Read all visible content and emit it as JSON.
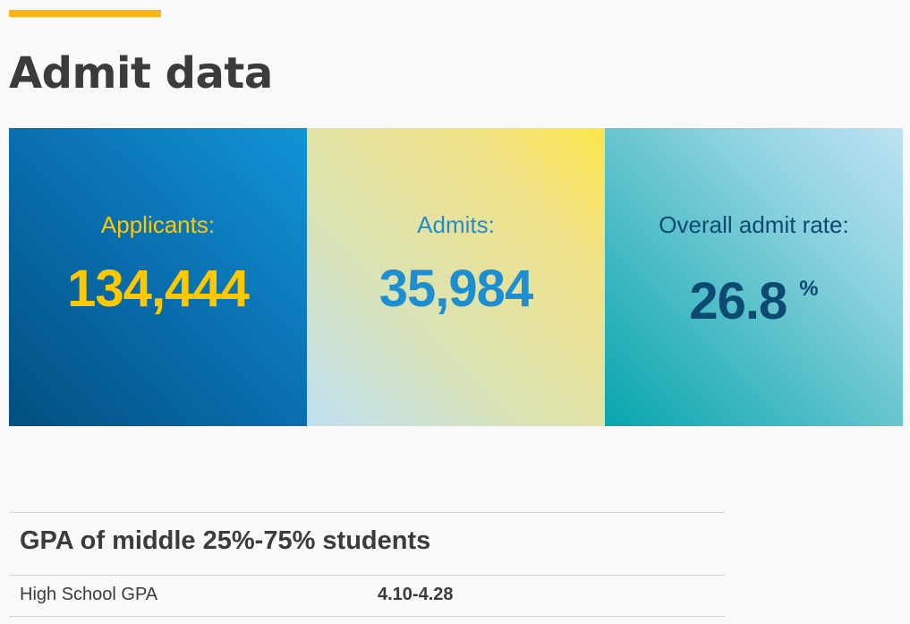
{
  "page": {
    "title": "Admit data",
    "accent_color": "#fdb515"
  },
  "stats": [
    {
      "label": "Applicants:",
      "value": "134,444",
      "unit": ""
    },
    {
      "label": "Admits:",
      "value": "35,984",
      "unit": ""
    },
    {
      "label": "Overall admit rate:",
      "value": "26.8",
      "unit": "%"
    }
  ],
  "gpa": {
    "heading": "GPA of middle 25%-75% students",
    "rows": [
      {
        "label": "High School GPA",
        "value": "4.10-4.28"
      }
    ]
  },
  "colors": {
    "title_text": "#3b3b3b",
    "applicants_text": "#fdc800",
    "admits_text": "#1d8fd0",
    "rate_text": "#0d4a72"
  }
}
